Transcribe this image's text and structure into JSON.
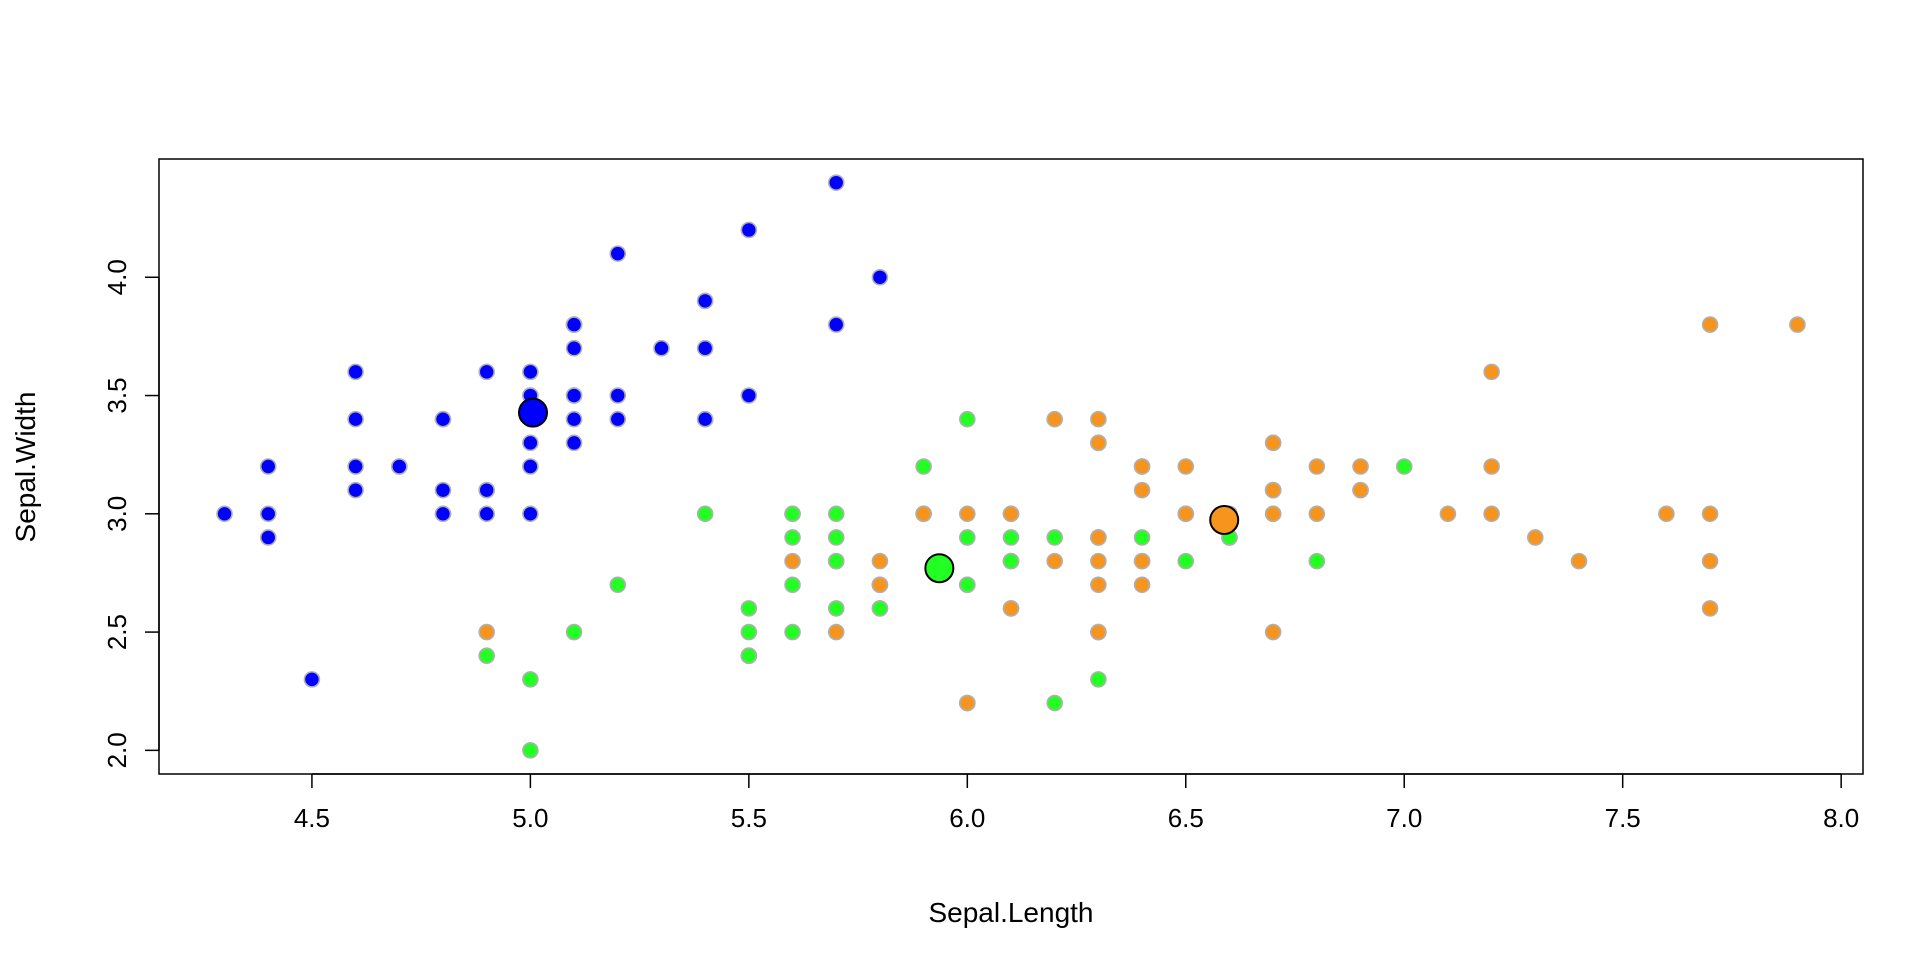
{
  "chart_data": {
    "type": "scatter",
    "title": "",
    "xlabel": "Sepal.Length",
    "ylabel": "Sepal.Width",
    "xlim": [
      4.15,
      8.05
    ],
    "ylim": [
      1.9,
      4.5
    ],
    "xticks": [
      "4.5",
      "5.0",
      "5.5",
      "6.0",
      "6.5",
      "7.0",
      "7.5",
      "8.0"
    ],
    "yticks": [
      "2.0",
      "2.5",
      "3.0",
      "3.5",
      "4.0"
    ],
    "grid": false,
    "legend": "none",
    "point_outline_color": "#b0b0b0",
    "series": [
      {
        "color": "#0000ff",
        "x": [
          5.1,
          4.9,
          4.7,
          4.6,
          5.0,
          5.4,
          4.6,
          5.0,
          4.4,
          4.9,
          5.4,
          4.8,
          4.8,
          4.3,
          5.8,
          5.7,
          5.4,
          5.1,
          5.7,
          5.1,
          5.4,
          5.1,
          4.6,
          5.1,
          4.8,
          5.0,
          5.0,
          5.2,
          5.2,
          4.7,
          4.8,
          5.4,
          5.2,
          5.5,
          4.9,
          5.0,
          5.5,
          4.9,
          4.4,
          5.1,
          5.0,
          4.5,
          4.4,
          5.0,
          5.1,
          4.8,
          5.1,
          4.6,
          5.3,
          5.0
        ],
        "y": [
          3.5,
          3.0,
          3.2,
          3.1,
          3.6,
          3.9,
          3.4,
          3.4,
          2.9,
          3.1,
          3.7,
          3.4,
          3.0,
          3.0,
          4.0,
          4.4,
          3.9,
          3.5,
          3.8,
          3.8,
          3.4,
          3.7,
          3.6,
          3.3,
          3.4,
          3.0,
          3.4,
          3.5,
          3.4,
          3.2,
          3.1,
          3.4,
          4.1,
          4.2,
          3.1,
          3.2,
          3.5,
          3.6,
          3.0,
          3.4,
          3.5,
          2.3,
          3.2,
          3.5,
          3.8,
          3.0,
          3.8,
          3.2,
          3.7,
          3.3
        ]
      },
      {
        "color": "#22ff22",
        "x": [
          5.7,
          5.5,
          4.9,
          5.2,
          5.0,
          5.9,
          6.0,
          6.1,
          5.6,
          6.7,
          5.6,
          5.8,
          6.2,
          5.6,
          5.9,
          6.1,
          6.3,
          6.1,
          6.4,
          6.6,
          6.8,
          6.0,
          5.7,
          5.5,
          5.5,
          5.8,
          6.0,
          5.4,
          6.0,
          6.7,
          6.3,
          5.6,
          5.5,
          5.5,
          6.1,
          5.8,
          5.0,
          5.6,
          5.7,
          5.7,
          6.2,
          5.1,
          5.7,
          7.0,
          6.4,
          6.9,
          6.5,
          6.3,
          6.6,
          5.8,
          6.0,
          6.1,
          6.7,
          6.6
        ],
        "y": [
          2.8,
          2.4,
          2.4,
          2.7,
          2.0,
          3.0,
          2.2,
          2.9,
          2.9,
          3.1,
          3.0,
          2.7,
          2.2,
          2.5,
          3.2,
          2.8,
          2.5,
          2.8,
          2.9,
          3.0,
          2.8,
          2.9,
          2.6,
          2.4,
          2.4,
          2.7,
          2.7,
          3.0,
          3.4,
          3.1,
          2.3,
          3.0,
          2.5,
          2.6,
          3.0,
          2.6,
          2.3,
          2.7,
          3.0,
          2.9,
          2.9,
          2.5,
          2.8,
          3.2,
          3.2,
          3.1,
          2.8,
          3.3,
          2.9,
          2.6,
          2.7,
          2.8,
          3.0,
          2.9
        ]
      },
      {
        "color": "#f7941d",
        "x": [
          4.9,
          5.6,
          5.7,
          5.8,
          5.8,
          5.9,
          6.0,
          6.0,
          6.1,
          6.1,
          6.2,
          6.2,
          6.3,
          6.3,
          6.3,
          6.3,
          6.3,
          6.3,
          6.4,
          6.4,
          6.4,
          6.4,
          6.4,
          6.5,
          6.5,
          6.5,
          6.5,
          6.7,
          6.7,
          6.7,
          6.7,
          6.7,
          6.8,
          6.8,
          6.9,
          6.9,
          7.1,
          7.2,
          7.2,
          7.2,
          7.3,
          7.4,
          7.6,
          7.7,
          7.7,
          7.7,
          7.7,
          7.9,
          6.0,
          6.1,
          5.9,
          6.3
        ],
        "y": [
          2.5,
          2.8,
          2.5,
          2.8,
          2.7,
          3.0,
          2.2,
          3.0,
          3.0,
          2.6,
          2.8,
          3.4,
          3.3,
          2.9,
          2.7,
          2.5,
          2.8,
          3.4,
          3.2,
          3.1,
          2.8,
          2.8,
          2.7,
          3.0,
          3.2,
          3.0,
          3.0,
          3.3,
          3.0,
          2.5,
          3.1,
          3.3,
          3.0,
          3.2,
          3.1,
          3.2,
          3.0,
          3.6,
          3.2,
          3.0,
          2.9,
          2.8,
          3.0,
          3.8,
          2.6,
          2.8,
          3.0,
          3.8,
          2.2,
          2.6,
          3.0,
          2.9
        ]
      }
    ],
    "centroids": [
      {
        "color": "#0000ff",
        "x": 5.006,
        "y": 3.428
      },
      {
        "color": "#22ff22",
        "x": 5.936,
        "y": 2.77
      },
      {
        "color": "#f7941d",
        "x": 6.588,
        "y": 2.974
      }
    ]
  }
}
